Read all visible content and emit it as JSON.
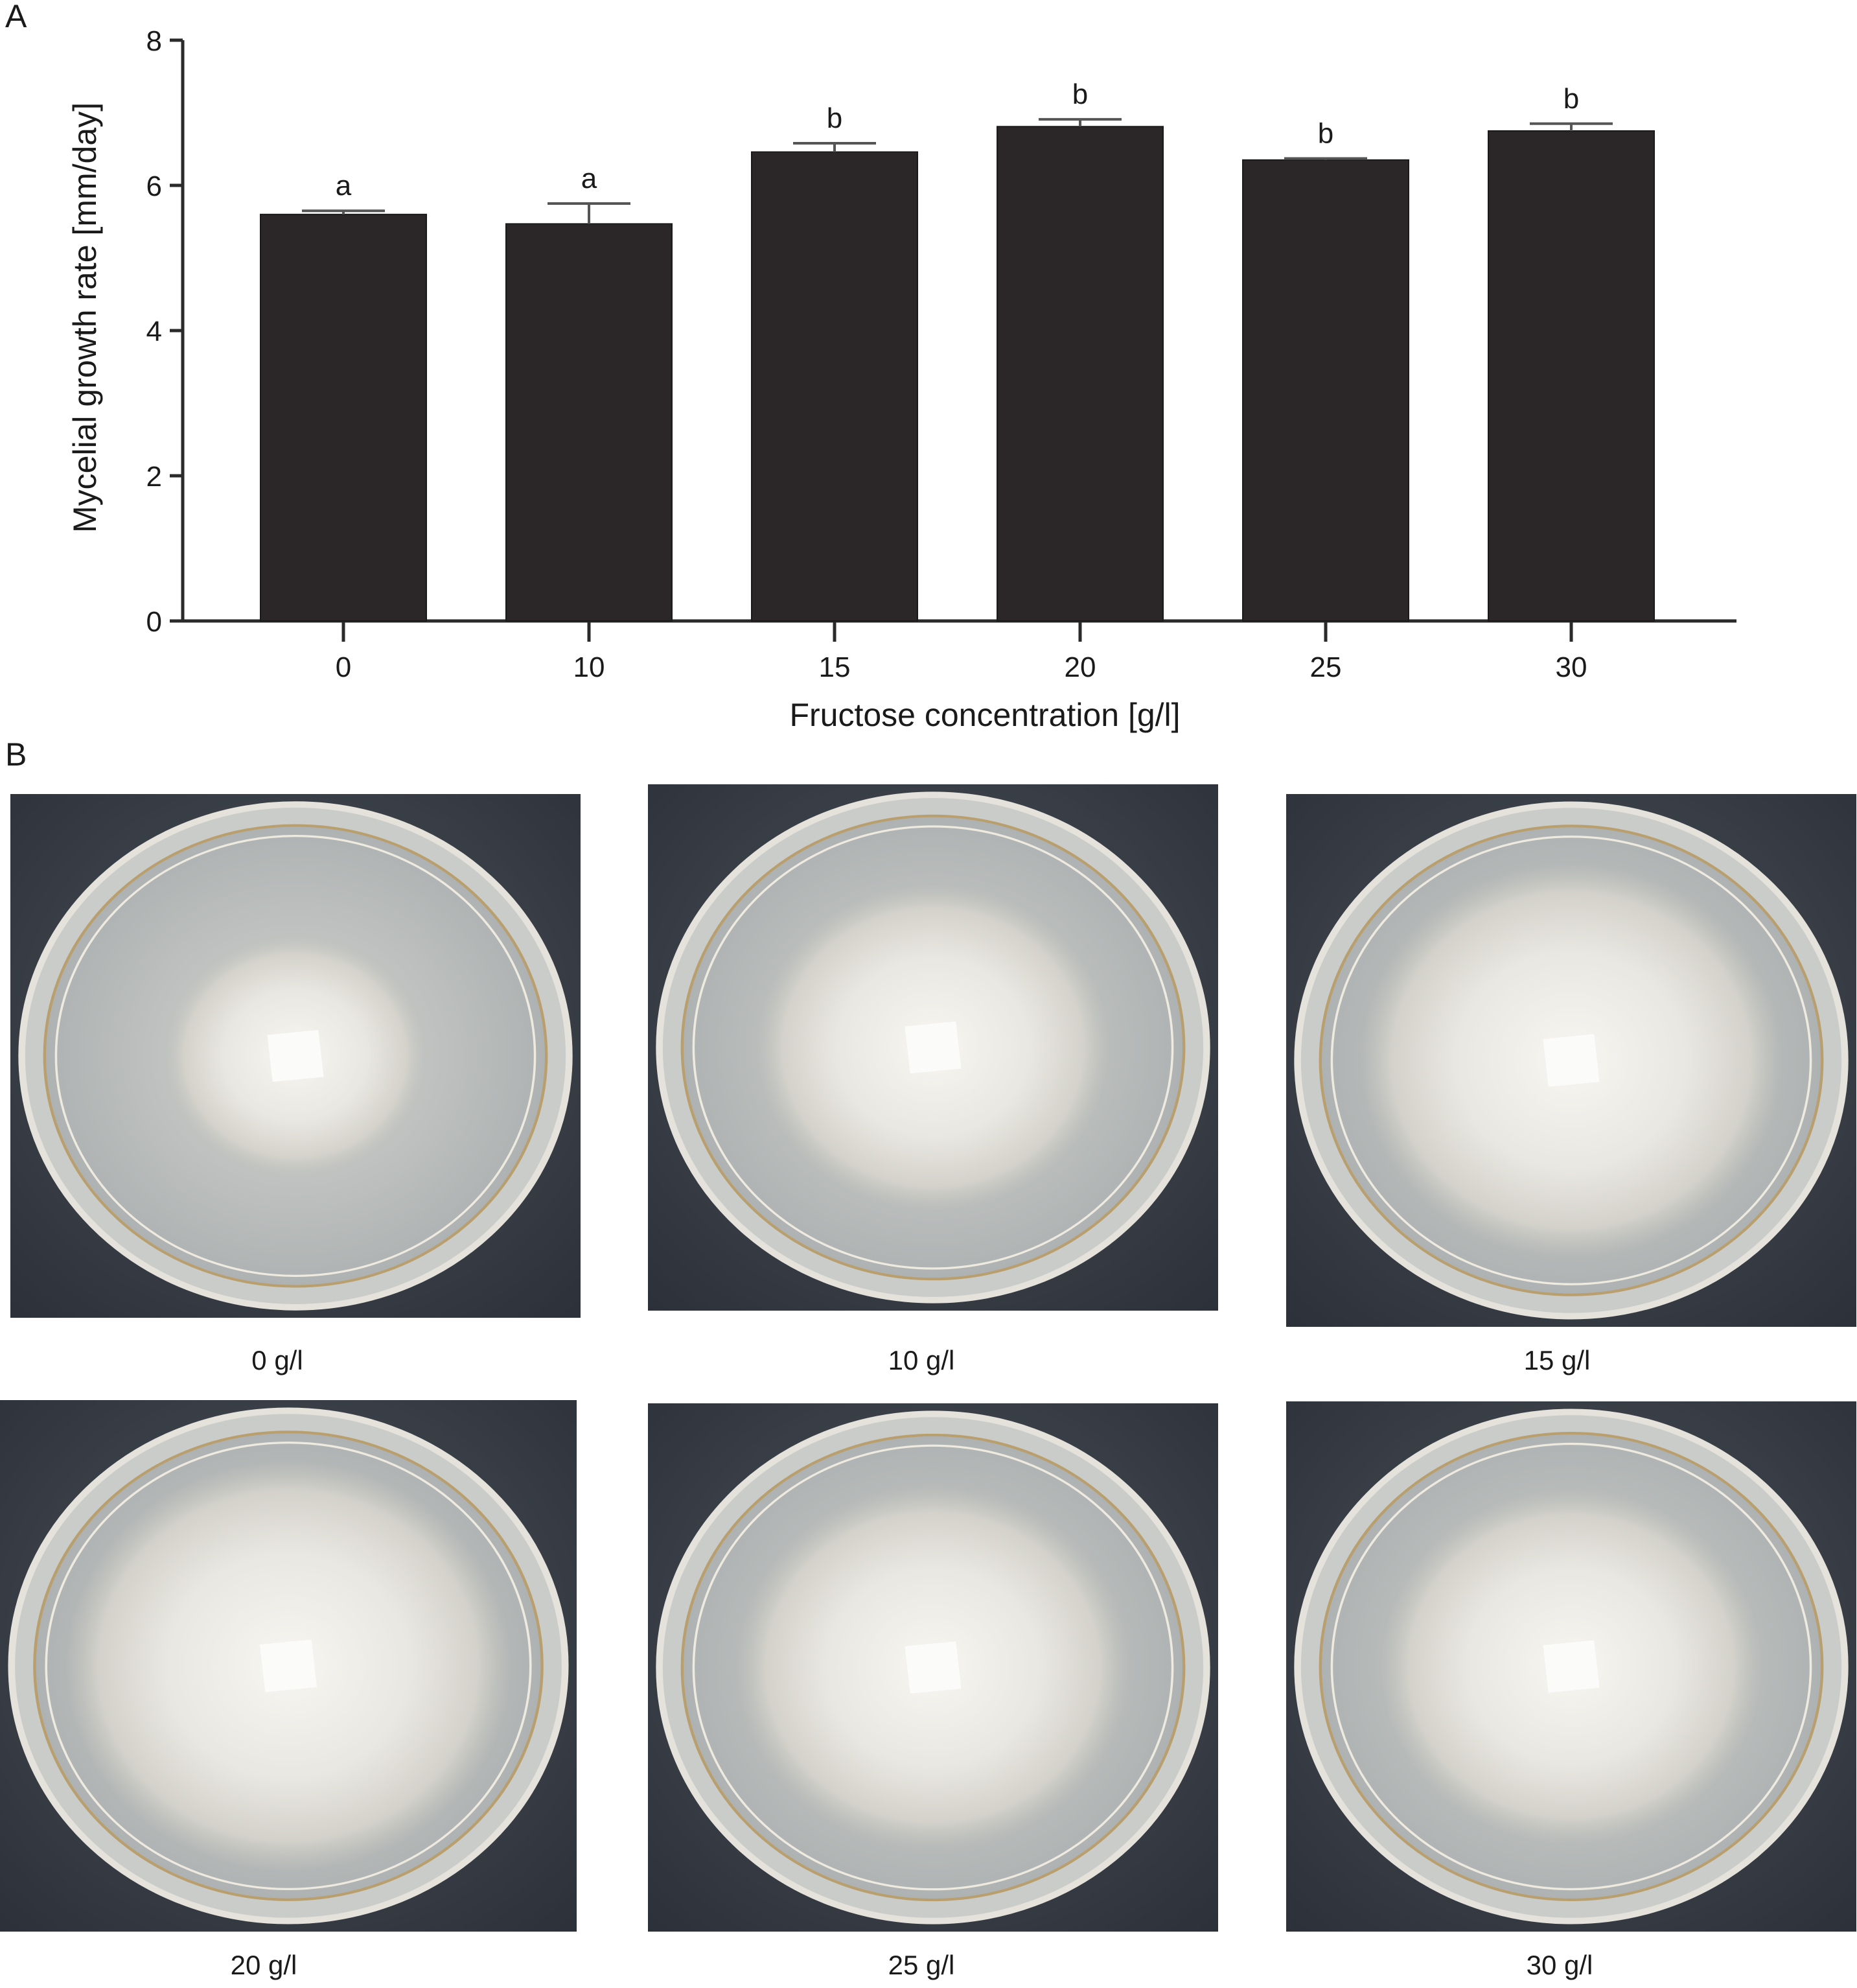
{
  "figure": {
    "panel_a_label": "A",
    "panel_b_label": "B"
  },
  "chart_data": {
    "type": "bar",
    "title": "",
    "xlabel": "Fructose concentration [g/l]",
    "ylabel": "Mycelial growth rate [mm/day]",
    "ylim": [
      0,
      8
    ],
    "yticks": [
      0,
      2,
      4,
      6,
      8
    ],
    "grid": false,
    "categories": [
      "0",
      "10",
      "15",
      "20",
      "25",
      "30"
    ],
    "values": [
      5.6,
      5.47,
      6.46,
      6.81,
      6.35,
      6.75
    ],
    "errors": [
      0.05,
      0.28,
      0.12,
      0.1,
      0.02,
      0.1
    ],
    "significance": [
      "a",
      "a",
      "b",
      "b",
      "b",
      "b"
    ],
    "bar_color": "#2b2729"
  },
  "photos": [
    {
      "caption": "0 g/l",
      "growth": 0.53
    },
    {
      "caption": "10 g/l",
      "growth": 0.72
    },
    {
      "caption": "15 g/l",
      "growth": 0.86
    },
    {
      "caption": "20 g/l",
      "growth": 0.9
    },
    {
      "caption": "25 g/l",
      "growth": 0.8
    },
    {
      "caption": "30 g/l",
      "growth": 0.78
    }
  ]
}
